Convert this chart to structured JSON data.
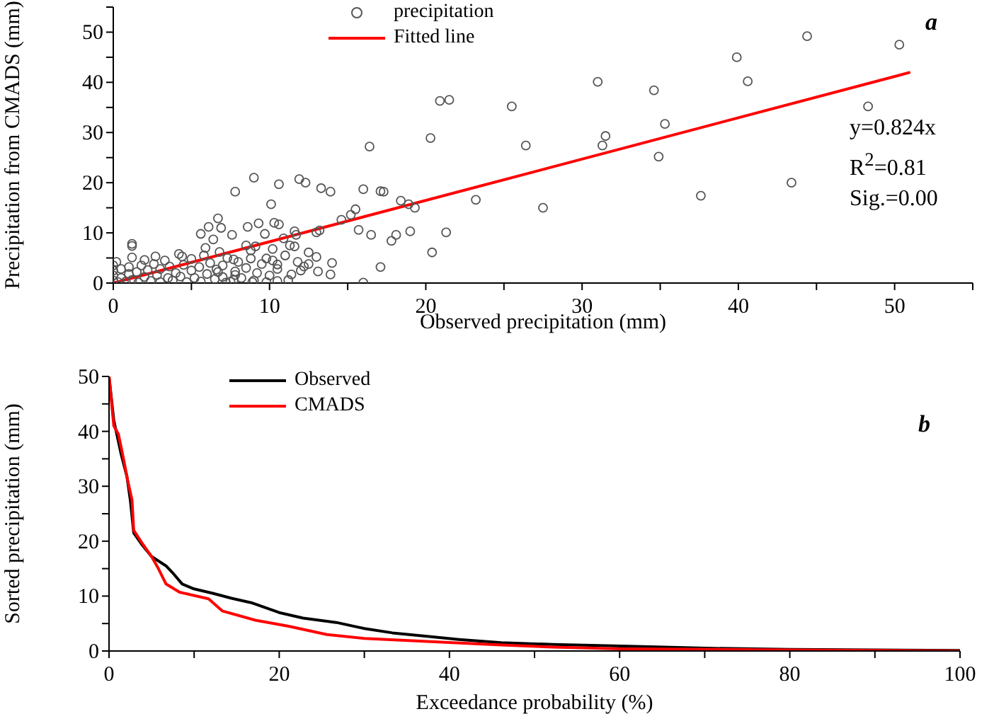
{
  "chart_data": [
    {
      "type": "scatter",
      "xlabel": "Observed precipitation (mm)",
      "ylabel": "Precipitation from CMADS (mm)",
      "xlim": [
        0,
        55
      ],
      "ylim": [
        0,
        55
      ],
      "xticks": [
        0,
        {
          "value": 5,
          "label": null
        },
        10,
        {
          "value": 15,
          "label": null
        },
        20,
        {
          "value": 25,
          "label": null
        },
        30,
        {
          "value": 35,
          "label": null
        },
        40,
        {
          "value": 45,
          "label": null
        },
        50,
        {
          "value": 55,
          "label": null
        }
      ],
      "yticks": [
        0,
        {
          "value": 5,
          "label": null
        },
        10,
        {
          "value": 15,
          "label": null
        },
        20,
        {
          "value": 25,
          "label": null
        },
        30,
        {
          "value": 35,
          "label": null
        },
        40,
        {
          "value": 45,
          "label": null
        },
        50,
        {
          "value": 55,
          "label": null
        }
      ],
      "grid": false,
      "legend": "top left",
      "annotations": [
        "y=0.824x",
        "R$^{2}$=0.81",
        "Sig.=0.00",
        "a"
      ],
      "series": [
        {
          "type": "scatter",
          "name": "precipitation",
          "color": "#555555",
          "marker": "circle",
          "x": [
            31.0,
            34.6,
            39.9,
            40.6,
            44.4,
            50.3,
            48.3,
            35.3,
            31.5,
            31.3,
            34.9,
            43.4,
            37.6,
            27.5,
            20.9,
            21.5,
            25.5,
            20.3,
            16.4,
            26.4,
            9.0,
            11.9,
            12.3,
            10.6,
            7.8,
            13.3,
            13.9,
            16.0,
            17.1,
            17.3,
            23.2,
            10.1,
            18.4,
            18.9,
            19.3,
            15.5,
            15.2,
            14.6,
            6.7,
            6.1,
            9.3,
            10.3,
            10.6,
            5.6,
            6.9,
            8.6,
            7.6,
            6.4,
            9.7,
            10.9,
            11.6,
            11.7,
            11.3,
            11.6,
            13.0,
            13.2,
            15.7,
            16.5,
            17.8,
            18.1,
            19.0,
            20.4,
            21.3,
            17.1,
            13.1,
            13.9,
            12.2,
            12.0,
            11.4,
            12.5,
            16.0,
            1.2,
            1.2,
            1.2,
            2.0,
            2.7,
            4.4,
            5.9,
            7.7,
            8.5,
            9.1,
            8.8,
            9.8,
            10.2,
            10.5,
            10.5,
            8.9,
            7.7,
            7.2,
            6.7,
            7.8,
            0,
            0,
            0,
            0,
            0.2,
            0.3,
            0.5,
            0.5,
            0.8,
            1,
            1,
            1.2,
            1.5,
            1.6,
            1.8,
            2,
            2.2,
            2.4,
            2.6,
            2.8,
            3,
            3,
            3.3,
            3.5,
            3.6,
            3.8,
            4,
            4.2,
            4.3,
            4.5,
            4.7,
            5,
            5,
            5.2,
            5.5,
            5.6,
            5.8,
            6,
            6.2,
            6.5,
            6.6,
            6.8,
            7,
            7,
            7.3,
            7.5,
            7.8,
            8,
            8.2,
            8.5,
            8.8,
            9,
            9.2,
            9.5,
            9.8,
            10,
            10.2,
            10.5,
            11,
            11.2,
            11.8,
            12.5,
            13,
            14
          ],
          "values": [
            40.1,
            38.4,
            45.0,
            40.2,
            49.2,
            47.5,
            35.2,
            31.7,
            29.3,
            27.4,
            25.2,
            20.0,
            17.4,
            15.0,
            36.3,
            36.5,
            35.2,
            28.9,
            27.2,
            27.4,
            21.0,
            20.7,
            20.0,
            19.7,
            18.2,
            18.9,
            18.2,
            18.7,
            18.3,
            18.2,
            16.6,
            15.7,
            16.4,
            15.7,
            15.0,
            14.7,
            13.6,
            12.6,
            12.9,
            11.2,
            11.9,
            12.0,
            11.7,
            9.8,
            11.0,
            11.2,
            9.6,
            8.7,
            9.8,
            8.9,
            10.3,
            9.6,
            7.5,
            7.3,
            10.1,
            10.5,
            10.6,
            9.6,
            8.4,
            9.6,
            10.3,
            6.1,
            10.1,
            3.2,
            2.3,
            1.7,
            3.3,
            2.5,
            1.7,
            6.1,
            0.1,
            7.8,
            7.4,
            5.1,
            4.6,
            5.3,
            5.3,
            7.0,
            4.7,
            7.5,
            7.3,
            4.9,
            4.9,
            4.5,
            3.7,
            0.4,
            0.2,
            0.6,
            0.1,
            2.2,
            1.6,
            0.5,
            1.5,
            2.5,
            3.5,
            4.2,
            0.2,
            1,
            2.8,
            0.3,
            1.8,
            3.2,
            0.6,
            2.2,
            0.1,
            3.5,
            1.2,
            2.6,
            0.4,
            3.8,
            1.6,
            0.2,
            2.8,
            4.5,
            1,
            3.3,
            0.5,
            2,
            5.8,
            1.3,
            3.6,
            0.2,
            2.5,
            4.8,
            1,
            3.2,
            0.3,
            5.5,
            1.8,
            4,
            0.8,
            2.7,
            6.2,
            1.2,
            3.5,
            5,
            0.3,
            2.3,
            4.2,
            1,
            3,
            6.5,
            0.5,
            2,
            3.8,
            0.2,
            1.5,
            6.8,
            2.8,
            5.5,
            0.6,
            4.2,
            3.8,
            5.2,
            4
          ]
        },
        {
          "type": "line",
          "name": "Fitted line",
          "color": "#ff0000",
          "marker": "none",
          "x": [
            0,
            51
          ],
          "values": [
            0,
            42.0
          ]
        }
      ]
    },
    {
      "type": "line",
      "xlabel": "Exceedance probability (%)",
      "ylabel": "Sorted precipitation (mm)",
      "xlim": [
        0,
        100
      ],
      "ylim": [
        0,
        50
      ],
      "xticks": [
        0,
        {
          "value": 10,
          "label": null
        },
        20,
        {
          "value": 30,
          "label": null
        },
        40,
        {
          "value": 50,
          "label": null
        },
        60,
        {
          "value": 70,
          "label": null
        },
        80,
        {
          "value": 90,
          "label": null
        },
        100
      ],
      "yticks": [
        0,
        {
          "value": 5,
          "label": null
        },
        10,
        {
          "value": 15,
          "label": null
        },
        20,
        {
          "value": 25,
          "label": null
        },
        30,
        {
          "value": 35,
          "label": null
        },
        40,
        {
          "value": 45,
          "label": null
        },
        50
      ],
      "grid": false,
      "legend": "top left",
      "marker": "none",
      "annotations": [
        "b"
      ],
      "series": [
        {
          "name": "Observed",
          "color": "#000000",
          "x": [
            0,
            0.56,
            1.4,
            2.1,
            2.5,
            2.9,
            3.9,
            5,
            6.7,
            7.5,
            8.6,
            10,
            12.2,
            14.4,
            16.7,
            20,
            22.8,
            26.7,
            30,
            33.3,
            37.8,
            41.1,
            46.1,
            52.2,
            60.2,
            70.2,
            80,
            100
          ],
          "values": [
            50,
            42,
            36,
            31.8,
            27.5,
            21.5,
            19.3,
            17.2,
            15.5,
            14.2,
            12.2,
            11.3,
            10.5,
            9.6,
            8.8,
            7.0,
            6.0,
            5.2,
            4.1,
            3.3,
            2.6,
            2.1,
            1.5,
            1.2,
            0.9,
            0.5,
            0.3,
            0.1
          ]
        },
        {
          "name": "CMADS",
          "color": "#ff0000",
          "x": [
            0,
            0.56,
            1.1,
            1.7,
            2.2,
            2.7,
            2.9,
            3.9,
            5,
            5.8,
            6.7,
            8.3,
            11.7,
            13.3,
            17.2,
            21.1,
            25.6,
            30,
            37.8,
            46.1,
            52.2,
            60.2,
            80,
            100
          ],
          "values": [
            50,
            41,
            39.5,
            35,
            31,
            27.5,
            22,
            19.6,
            17.2,
            15,
            12.2,
            10.7,
            9.5,
            7.3,
            5.6,
            4.5,
            3.0,
            2.3,
            1.7,
            1.1,
            0.7,
            0.4,
            0.2,
            0
          ]
        }
      ]
    }
  ]
}
